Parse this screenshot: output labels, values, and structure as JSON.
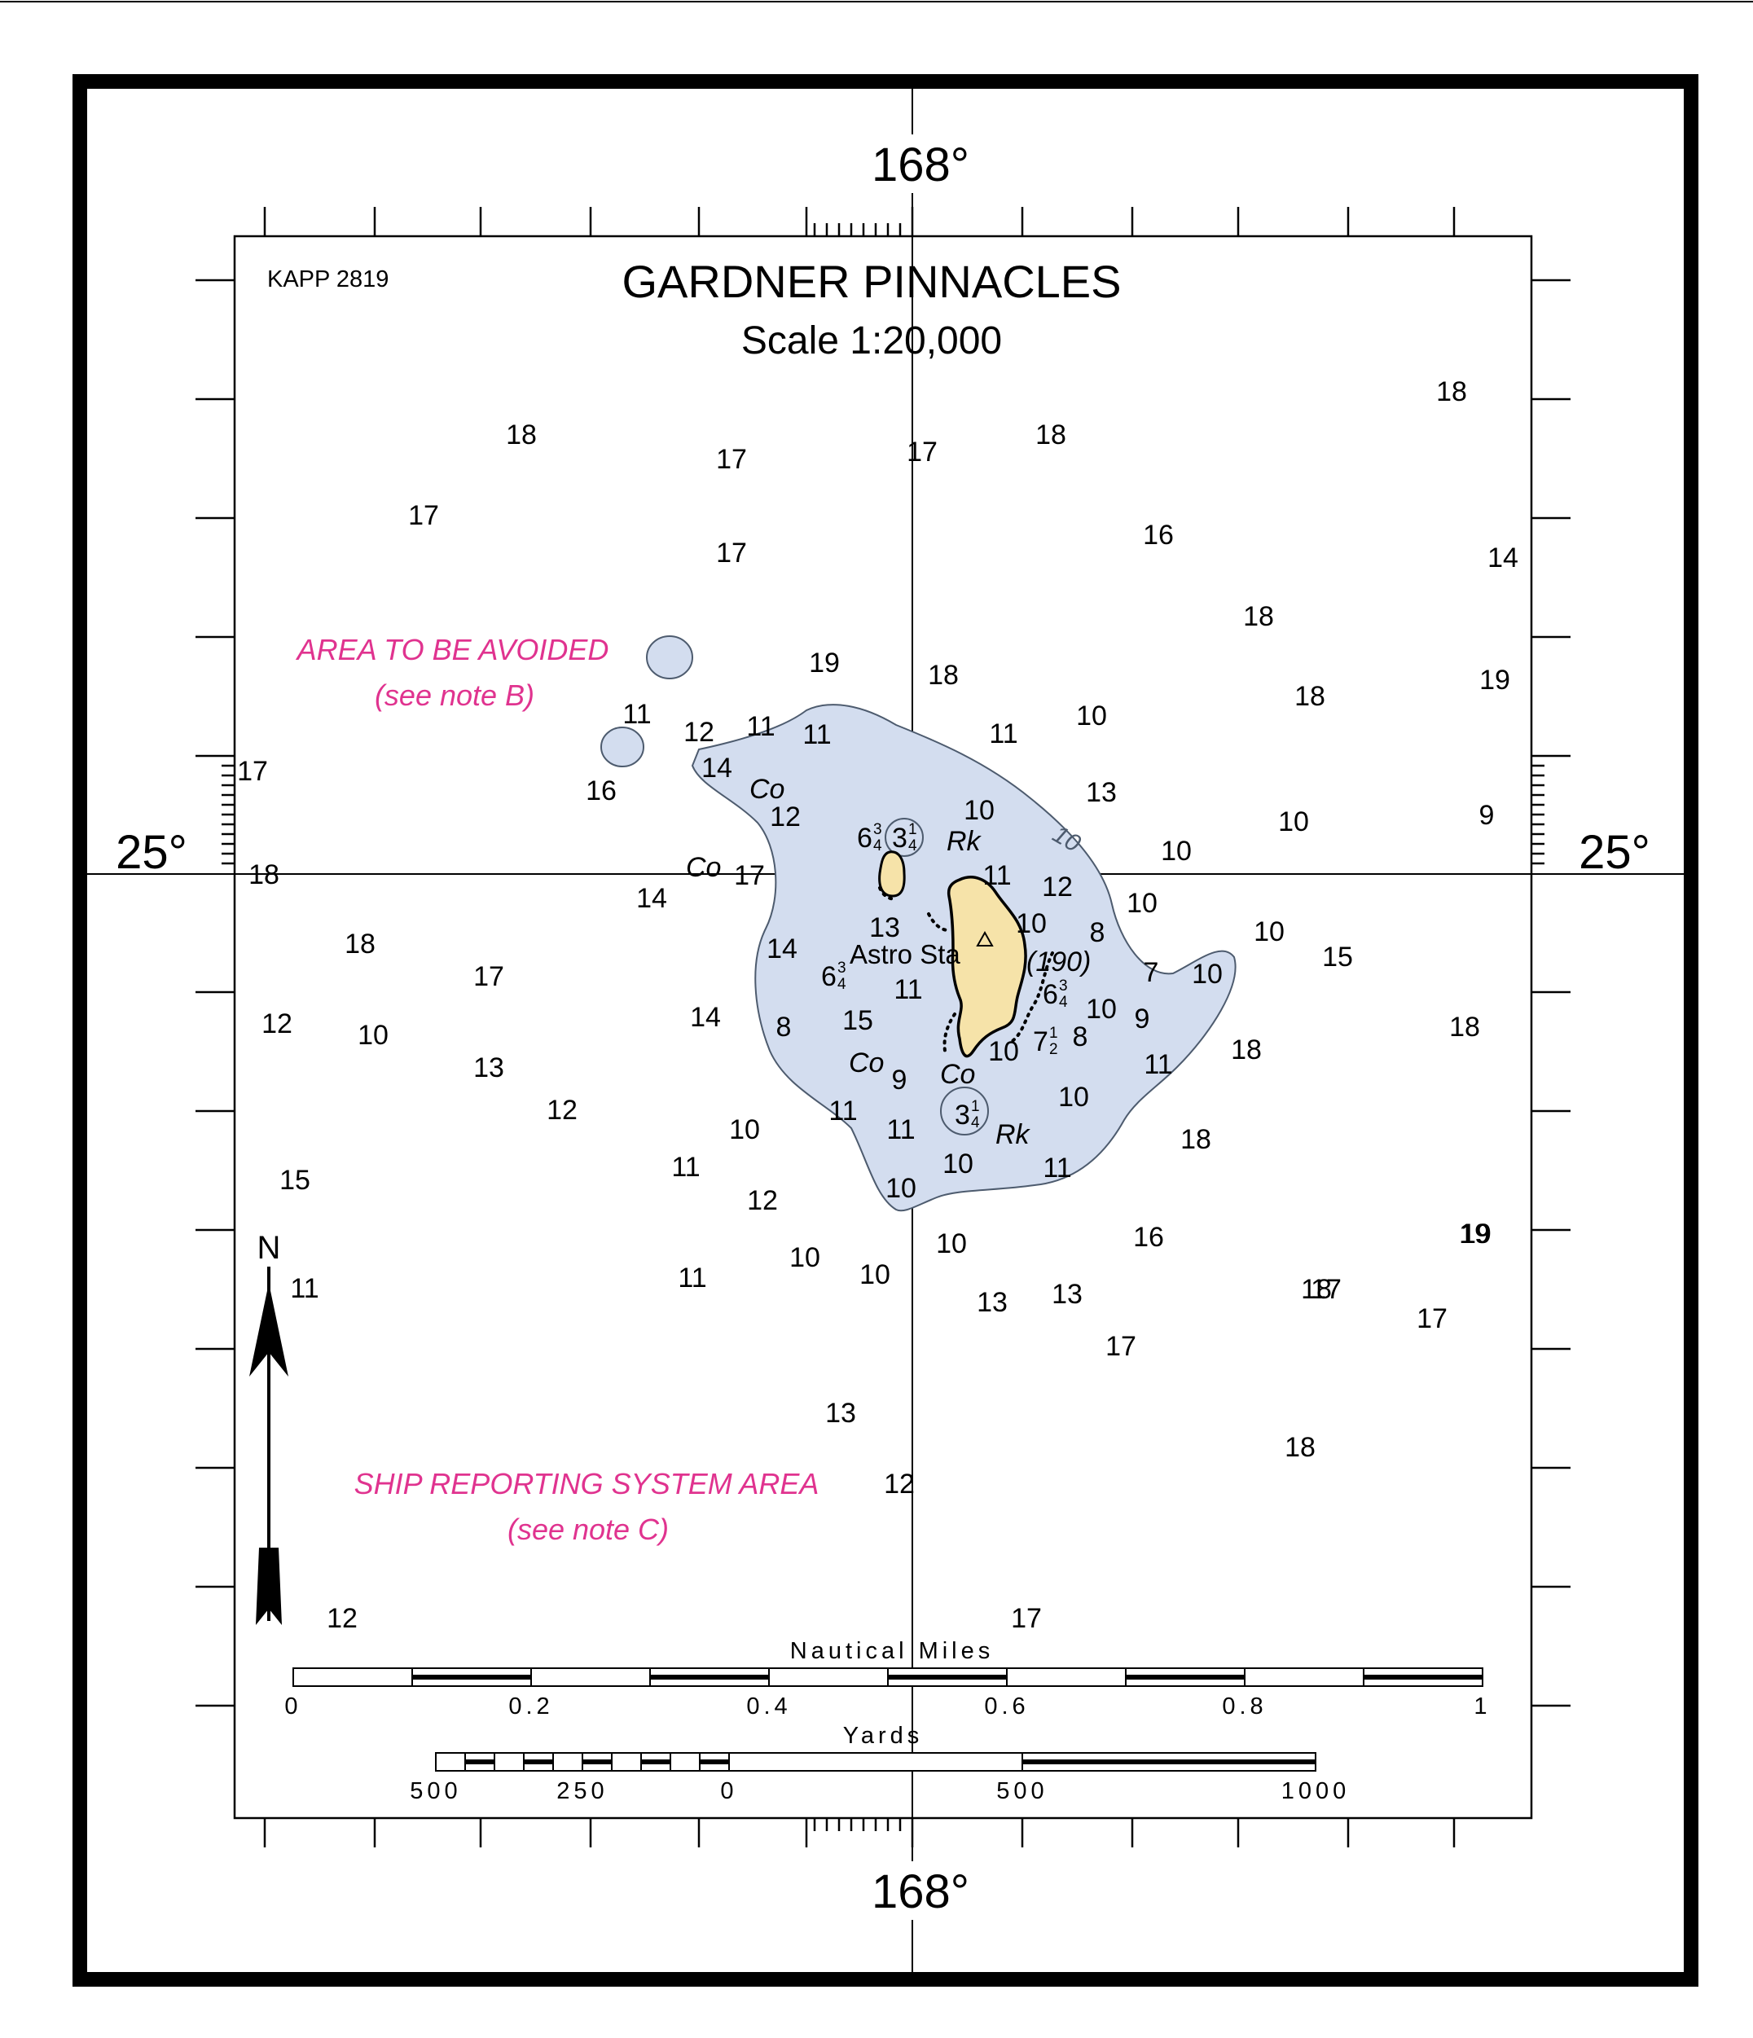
{
  "chart_id": "KAPP 2819",
  "title": "GARDNER PINNACLES",
  "scale_text": "Scale 1:20,000",
  "lon_label": "168°",
  "lat_label": "25°",
  "station_label": "Astro Sta",
  "height_label": "(190)",
  "area_avoided": {
    "title": "AREA TO BE AVOIDED",
    "note": "(see note B)"
  },
  "ship_reporting": {
    "title": "SHIP REPORTING SYSTEM AREA",
    "note": "(see note C)"
  },
  "north_label": "N",
  "contour_label": "10",
  "bottom_labels": [
    {
      "id": "co-1",
      "text": "Co"
    },
    {
      "id": "co-2",
      "text": "Co"
    },
    {
      "id": "co-3",
      "text": "Co"
    },
    {
      "id": "co-4",
      "text": "Co"
    },
    {
      "id": "rk-1",
      "text": "Rk"
    },
    {
      "id": "rk-2",
      "text": "Rk"
    }
  ],
  "soundings": [
    "18",
    "17",
    "17",
    "18",
    "18",
    "17",
    "17",
    "16",
    "14",
    "18",
    "19",
    "18",
    "19",
    "18",
    "11",
    "12",
    "11",
    "11",
    "11",
    "10",
    "13",
    "17",
    "16",
    "14",
    "12",
    "10",
    "10",
    "9",
    "10",
    "18",
    "17",
    "14",
    "11",
    "12",
    "10",
    "10",
    "15",
    "18",
    "17",
    "14",
    "13",
    "10",
    "8",
    "7",
    "10",
    "12",
    "10",
    "14",
    "15",
    "11",
    "8",
    "10",
    "9",
    "8",
    "10",
    "11",
    "18",
    "18",
    "13",
    "12",
    "9",
    "10",
    "11",
    "10",
    "11",
    "10",
    "18",
    "15",
    "11",
    "11",
    "12",
    "10",
    "10",
    "10",
    "10",
    "16",
    "11",
    "11",
    "13",
    "13",
    "19",
    "13",
    "12",
    "12",
    "17",
    "17",
    "18",
    "17",
    "18",
    "17",
    "19"
  ],
  "fractional_soundings": [
    {
      "id": "fs-1",
      "whole": "6",
      "num": "3",
      "den": "4"
    },
    {
      "id": "fs-2",
      "whole": "3",
      "num": "1",
      "den": "4"
    },
    {
      "id": "fs-3",
      "whole": "6",
      "num": "3",
      "den": "4"
    },
    {
      "id": "fs-4",
      "whole": "6",
      "num": "3",
      "den": "4"
    },
    {
      "id": "fs-5",
      "whole": "7",
      "num": "1",
      "den": "2"
    },
    {
      "id": "fs-6",
      "whole": "3",
      "num": "1",
      "den": "4"
    }
  ],
  "nautical_miles_scale": {
    "label": "Nautical  Miles",
    "ticks": [
      "0",
      "0.2",
      "0.4",
      "0.6",
      "0.8",
      "1"
    ]
  },
  "yards_scale": {
    "label": "Yards",
    "ticks": [
      "500",
      "250",
      "0",
      "500",
      "1000"
    ]
  },
  "colors": {
    "shoal_fill": "#d3ddef",
    "land_fill": "#f6e3a9",
    "area_text": "#e0338f",
    "frame": "#000000"
  }
}
